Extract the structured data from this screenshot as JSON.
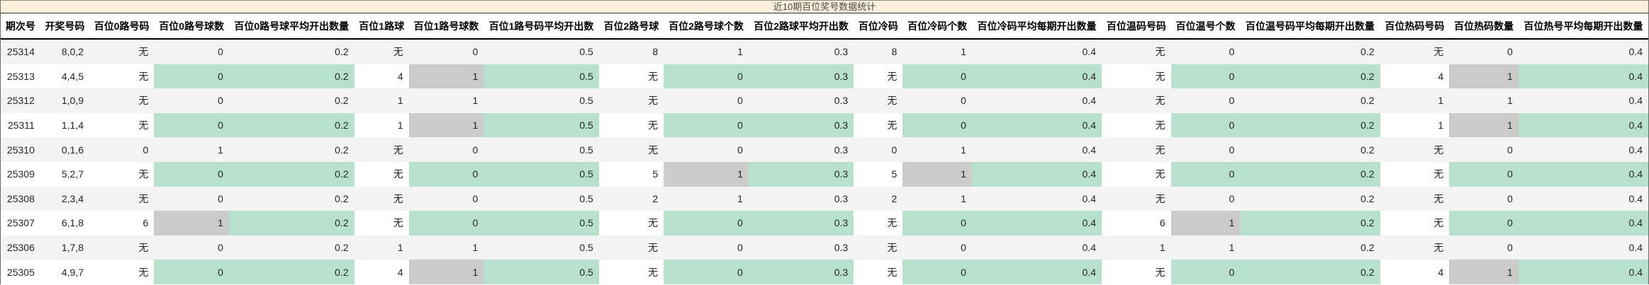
{
  "title": "近10期百位奖号数据统计",
  "colors": {
    "green_cell": "#b7e1cd",
    "gray_cell": "#cbcbcb",
    "title_bg": "#fcf0dd",
    "stripe_row": "#f3f3f3",
    "header_text": "#000000"
  },
  "table": {
    "headers": [
      "期次号",
      "开奖号码",
      "百位0路号码",
      "百位0路号球数",
      "百位0路号球平均开出数量",
      "百位1路球",
      "百位1路号球数",
      "百位1路号码平均开出数",
      "百位2路号球",
      "百位2路号球个数",
      "百位2路球平均开出数",
      "百位冷码",
      "百位冷码个数",
      "百位冷码平均每期开出数量",
      "百位温码号码",
      "百位温号个数",
      "百位温号码平均每期开出数量",
      "百位热码号码",
      "百位热码数量",
      "百位热号平均每期开出数量"
    ],
    "green_columns": [
      3,
      4,
      6,
      7,
      9,
      10,
      12,
      13,
      15,
      16,
      18,
      19
    ],
    "rows": [
      {
        "cells": [
          "25314",
          "8,0,2",
          "无",
          "0",
          "0.2",
          "无",
          "0",
          "0.5",
          "8",
          "1",
          "0.3",
          "8",
          "1",
          "0.4",
          "无",
          "0",
          "0.2",
          "无",
          "0",
          "0.4"
        ],
        "gray_cols": [
          9,
          12
        ]
      },
      {
        "cells": [
          "25313",
          "4,4,5",
          "无",
          "0",
          "0.2",
          "4",
          "1",
          "0.5",
          "无",
          "0",
          "0.3",
          "无",
          "0",
          "0.4",
          "无",
          "0",
          "0.2",
          "4",
          "1",
          "0.4"
        ],
        "gray_cols": [
          6,
          18
        ]
      },
      {
        "cells": [
          "25312",
          "1,0,9",
          "无",
          "0",
          "0.2",
          "1",
          "1",
          "0.5",
          "无",
          "0",
          "0.3",
          "无",
          "0",
          "0.4",
          "无",
          "0",
          "0.2",
          "1",
          "1",
          "0.4"
        ],
        "gray_cols": [
          6,
          18
        ]
      },
      {
        "cells": [
          "25311",
          "1,1,4",
          "无",
          "0",
          "0.2",
          "1",
          "1",
          "0.5",
          "无",
          "0",
          "0.3",
          "无",
          "0",
          "0.4",
          "无",
          "0",
          "0.2",
          "1",
          "1",
          "0.4"
        ],
        "gray_cols": [
          6,
          18
        ]
      },
      {
        "cells": [
          "25310",
          "0,1,6",
          "0",
          "1",
          "0.2",
          "无",
          "0",
          "0.5",
          "无",
          "0",
          "0.3",
          "0",
          "1",
          "0.4",
          "无",
          "0",
          "0.2",
          "无",
          "0",
          "0.4"
        ],
        "gray_cols": [
          3,
          12
        ]
      },
      {
        "cells": [
          "25309",
          "5,2,7",
          "无",
          "0",
          "0.2",
          "无",
          "0",
          "0.5",
          "5",
          "1",
          "0.3",
          "5",
          "1",
          "0.4",
          "无",
          "0",
          "0.2",
          "无",
          "0",
          "0.4"
        ],
        "gray_cols": [
          9,
          12
        ]
      },
      {
        "cells": [
          "25308",
          "2,3,4",
          "无",
          "0",
          "0.2",
          "无",
          "0",
          "0.5",
          "2",
          "1",
          "0.3",
          "2",
          "1",
          "0.4",
          "无",
          "0",
          "0.2",
          "无",
          "0",
          "0.4"
        ],
        "gray_cols": [
          9,
          12
        ]
      },
      {
        "cells": [
          "25307",
          "6,1,8",
          "6",
          "1",
          "0.2",
          "无",
          "0",
          "0.5",
          "无",
          "0",
          "0.3",
          "无",
          "0",
          "0.4",
          "6",
          "1",
          "0.2",
          "无",
          "0",
          "0.4"
        ],
        "gray_cols": [
          3,
          15
        ]
      },
      {
        "cells": [
          "25306",
          "1,7,8",
          "无",
          "0",
          "0.2",
          "1",
          "1",
          "0.5",
          "无",
          "0",
          "0.3",
          "无",
          "0",
          "0.4",
          "1",
          "1",
          "0.2",
          "无",
          "0",
          "0.4"
        ],
        "gray_cols": [
          6,
          15
        ]
      },
      {
        "cells": [
          "25305",
          "4,9,7",
          "无",
          "0",
          "0.2",
          "4",
          "1",
          "0.5",
          "无",
          "0",
          "0.3",
          "无",
          "0",
          "0.4",
          "无",
          "0",
          "0.2",
          "4",
          "1",
          "0.4"
        ],
        "gray_cols": [
          6,
          18
        ]
      }
    ]
  }
}
